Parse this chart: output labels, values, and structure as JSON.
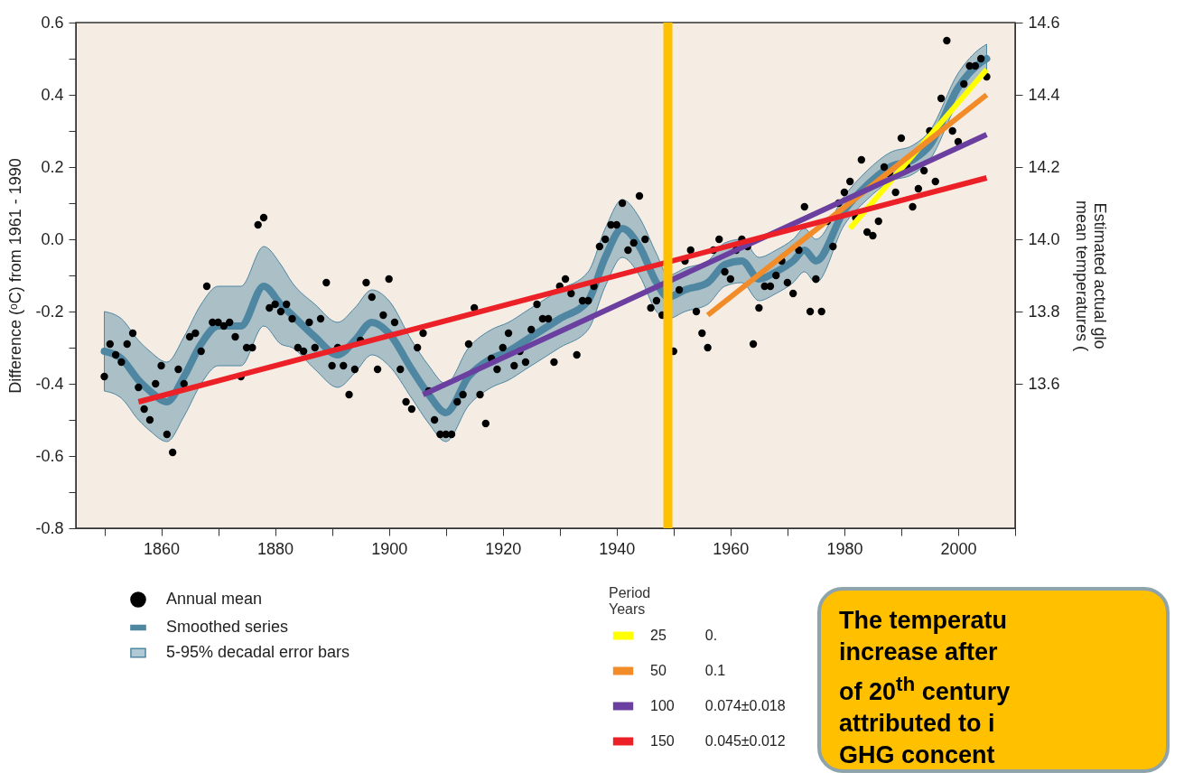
{
  "chart_data": {
    "type": "scatter",
    "ylabel": "Difference (ᵒC) from 1961 - 1990",
    "y2label": "Estimated actual glo\nmean temperatures (",
    "legend_title": "Period\nYears",
    "xlim": [
      1845,
      2010
    ],
    "xticks": [
      {
        "value": 1850,
        "label": null
      },
      1860,
      {
        "value": 1870,
        "label": null
      },
      1880,
      {
        "value": 1890,
        "label": null
      },
      1900,
      {
        "value": 1910,
        "label": null
      },
      1920,
      {
        "value": 1930,
        "label": null
      },
      1940,
      {
        "value": 1950,
        "label": null
      },
      1960,
      {
        "value": 1970,
        "label": null
      },
      1980,
      {
        "value": 1990,
        "label": null
      },
      2000,
      {
        "value": 2010,
        "label": null
      }
    ],
    "ylim": [
      -0.8,
      0.6
    ],
    "yticks": [
      -0.8,
      {
        "value": -0.7,
        "label": null
      },
      -0.6,
      {
        "value": -0.5,
        "label": null
      },
      -0.4,
      {
        "value": -0.3,
        "label": null
      },
      -0.2,
      {
        "value": -0.1,
        "label": null
      },
      {
        "value": 0,
        "label": "0.0"
      },
      {
        "value": 0.1,
        "label": null
      },
      0.2,
      {
        "value": 0.3,
        "label": null
      },
      0.4,
      {
        "value": 0.5,
        "label": null
      },
      0.6
    ],
    "y2lim": [
      13.2,
      14.6
    ],
    "y2ticks": [
      13.6,
      13.8,
      {
        "value": 14,
        "label": "14.0"
      },
      14.2,
      14.4,
      14.6
    ],
    "legend": "bottom",
    "ref_lines": [
      {
        "axis": "x",
        "value": 1949,
        "color": "#ffc000"
      }
    ],
    "annotations": [
      "5-95% decadal error bars",
      "The temperatu\nincrease after\nof 20$^{th}$ century\nattributed to i\nGHG concent",
      "0.",
      "0.1",
      "0.074±0.018",
      "0.045±0.012"
    ],
    "series": [
      {
        "name": "Annual mean",
        "type": "scatter",
        "marker": "circle",
        "color": "#000000",
        "x": [
          1850,
          1851,
          1852,
          1853,
          1854,
          1855,
          1856,
          1857,
          1858,
          1859,
          1860,
          1861,
          1862,
          1863,
          1864,
          1865,
          1866,
          1867,
          1868,
          1869,
          1870,
          1871,
          1872,
          1873,
          1874,
          1875,
          1876,
          1877,
          1878,
          1879,
          1880,
          1881,
          1882,
          1883,
          1884,
          1885,
          1886,
          1887,
          1888,
          1889,
          1890,
          1891,
          1892,
          1893,
          1894,
          1895,
          1896,
          1897,
          1898,
          1899,
          1900,
          1901,
          1902,
          1903,
          1904,
          1905,
          1906,
          1907,
          1908,
          1909,
          1910,
          1911,
          1912,
          1913,
          1914,
          1915,
          1916,
          1917,
          1918,
          1919,
          1920,
          1921,
          1922,
          1923,
          1924,
          1925,
          1926,
          1927,
          1928,
          1929,
          1930,
          1931,
          1932,
          1933,
          1934,
          1935,
          1936,
          1937,
          1938,
          1939,
          1940,
          1941,
          1942,
          1943,
          1944,
          1945,
          1946,
          1947,
          1948,
          1949,
          1950,
          1951,
          1952,
          1953,
          1954,
          1955,
          1956,
          1957,
          1958,
          1959,
          1960,
          1961,
          1962,
          1963,
          1964,
          1965,
          1966,
          1967,
          1968,
          1969,
          1970,
          1971,
          1972,
          1973,
          1974,
          1975,
          1976,
          1977,
          1978,
          1979,
          1980,
          1981,
          1982,
          1983,
          1984,
          1985,
          1986,
          1987,
          1988,
          1989,
          1990,
          1991,
          1992,
          1993,
          1994,
          1995,
          1996,
          1997,
          1998,
          1999,
          2000,
          2001,
          2002,
          2003,
          2004,
          2005
        ],
        "values": [
          -0.38,
          -0.29,
          -0.32,
          -0.34,
          -0.29,
          -0.26,
          -0.41,
          -0.47,
          -0.5,
          -0.4,
          -0.35,
          -0.54,
          -0.59,
          -0.36,
          -0.4,
          -0.27,
          -0.26,
          -0.31,
          -0.13,
          -0.23,
          -0.23,
          -0.24,
          -0.23,
          -0.27,
          -0.38,
          -0.3,
          -0.3,
          0.04,
          0.06,
          -0.19,
          -0.18,
          -0.2,
          -0.18,
          -0.22,
          -0.3,
          -0.31,
          -0.23,
          -0.3,
          -0.22,
          -0.12,
          -0.35,
          -0.3,
          -0.35,
          -0.43,
          -0.36,
          -0.28,
          -0.12,
          -0.16,
          -0.36,
          -0.21,
          -0.11,
          -0.23,
          -0.36,
          -0.45,
          -0.47,
          -0.3,
          -0.26,
          -0.42,
          -0.5,
          -0.54,
          -0.54,
          -0.54,
          -0.45,
          -0.43,
          -0.29,
          -0.19,
          -0.43,
          -0.51,
          -0.33,
          -0.36,
          -0.3,
          -0.26,
          -0.35,
          -0.31,
          -0.34,
          -0.25,
          -0.18,
          -0.22,
          -0.22,
          -0.34,
          -0.13,
          -0.11,
          -0.15,
          -0.32,
          -0.17,
          -0.17,
          -0.13,
          -0.02,
          0.0,
          0.04,
          0.04,
          0.1,
          -0.03,
          -0.01,
          0.12,
          0.0,
          -0.19,
          -0.17,
          -0.21,
          null,
          -0.31,
          -0.14,
          -0.06,
          -0.03,
          -0.2,
          -0.26,
          -0.3,
          -0.03,
          0.0,
          -0.09,
          -0.11,
          -0.03,
          0.0,
          -0.02,
          -0.29,
          -0.19,
          -0.13,
          -0.13,
          -0.1,
          -0.06,
          -0.12,
          -0.15,
          -0.03,
          0.09,
          -0.2,
          -0.11,
          -0.2,
          0.05,
          -0.02,
          0.1,
          0.13,
          0.16,
          0.06,
          0.22,
          0.02,
          0.01,
          0.05,
          0.2,
          0.18,
          0.13,
          0.28,
          0.2,
          0.09,
          0.14,
          0.19,
          0.3,
          0.16,
          0.39,
          0.55,
          0.3,
          0.27,
          0.43,
          0.48,
          0.48,
          0.5,
          0.45
        ]
      },
      {
        "name": "Smoothed series",
        "type": "line",
        "color": "#4f87a2",
        "x": [
          1850,
          1853,
          1856,
          1858,
          1861,
          1864,
          1867,
          1870,
          1874,
          1878,
          1881,
          1883,
          1887,
          1891,
          1894,
          1897,
          1900,
          1904,
          1907,
          1910,
          1914,
          1918,
          1921,
          1924,
          1927,
          1930,
          1935,
          1938,
          1941,
          1944,
          1947,
          1949,
          1952,
          1956,
          1959,
          1962,
          1965,
          1968,
          1971,
          1973,
          1975,
          1980,
          1984,
          1988,
          1992,
          1995,
          2000,
          2004,
          2005
        ],
        "values": [
          -0.31,
          -0.33,
          -0.39,
          -0.42,
          -0.45,
          -0.38,
          -0.29,
          -0.24,
          -0.24,
          -0.13,
          -0.18,
          -0.21,
          -0.27,
          -0.32,
          -0.28,
          -0.23,
          -0.26,
          -0.36,
          -0.43,
          -0.48,
          -0.38,
          -0.33,
          -0.31,
          -0.28,
          -0.25,
          -0.22,
          -0.17,
          -0.05,
          0.03,
          -0.02,
          -0.12,
          -0.16,
          -0.14,
          -0.12,
          -0.07,
          -0.06,
          -0.11,
          -0.09,
          -0.06,
          -0.03,
          -0.06,
          0.08,
          0.15,
          0.2,
          0.22,
          0.26,
          0.42,
          0.49,
          0.5
        ],
        "lower": [
          -0.42,
          -0.44,
          -0.5,
          -0.53,
          -0.56,
          -0.49,
          -0.4,
          -0.35,
          -0.35,
          -0.24,
          -0.29,
          -0.3,
          -0.36,
          -0.41,
          -0.37,
          -0.32,
          -0.35,
          -0.44,
          -0.51,
          -0.56,
          -0.46,
          -0.41,
          -0.39,
          -0.36,
          -0.33,
          -0.3,
          -0.25,
          -0.13,
          -0.05,
          -0.1,
          -0.2,
          -0.22,
          -0.2,
          -0.18,
          -0.13,
          -0.12,
          -0.17,
          -0.15,
          -0.12,
          -0.09,
          -0.12,
          0.04,
          0.11,
          0.16,
          0.18,
          0.22,
          0.38,
          0.45,
          0.46
        ],
        "upper": [
          -0.2,
          -0.22,
          -0.28,
          -0.31,
          -0.34,
          -0.27,
          -0.18,
          -0.13,
          -0.13,
          -0.02,
          -0.07,
          -0.12,
          -0.18,
          -0.23,
          -0.19,
          -0.14,
          -0.17,
          -0.28,
          -0.35,
          -0.4,
          -0.3,
          -0.25,
          -0.23,
          -0.2,
          -0.17,
          -0.14,
          -0.09,
          0.03,
          0.11,
          0.06,
          -0.04,
          -0.1,
          -0.08,
          -0.06,
          -0.01,
          0.0,
          -0.05,
          -0.03,
          0.0,
          0.03,
          0.0,
          0.12,
          0.19,
          0.24,
          0.26,
          0.3,
          0.46,
          0.53,
          0.54
        ]
      },
      {
        "name": "25",
        "type": "line",
        "color": "#ffff00",
        "x": [
          1981,
          2005
        ],
        "values": [
          0.03,
          0.47
        ]
      },
      {
        "name": "50",
        "type": "line",
        "color": "#f28c28",
        "x": [
          1956,
          2005
        ],
        "values": [
          -0.21,
          0.4
        ]
      },
      {
        "name": "100",
        "type": "line",
        "color": "#6a3fa0",
        "x": [
          1906,
          2005
        ],
        "values": [
          -0.43,
          0.29
        ]
      },
      {
        "name": "150",
        "type": "line",
        "color": "#ec2027",
        "x": [
          1856,
          2005
        ],
        "values": [
          -0.45,
          0.17
        ]
      }
    ]
  }
}
